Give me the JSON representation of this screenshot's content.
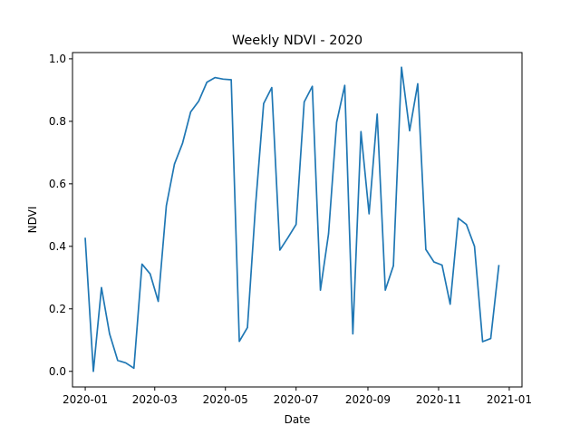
{
  "chart_data": {
    "type": "line",
    "title": "Weekly NDVI - 2020",
    "xlabel": "Date",
    "ylabel": "NDVI",
    "xlim": [
      "2019-12-21",
      "2021-01-12"
    ],
    "ylim": [
      -0.05,
      1.02
    ],
    "x_ticks": [
      "2020-01",
      "2020-03",
      "2020-05",
      "2020-07",
      "2020-09",
      "2020-11",
      "2021-01"
    ],
    "y_ticks": [
      "0.0",
      "0.2",
      "0.4",
      "0.6",
      "0.8",
      "1.0"
    ],
    "grid": false,
    "series": [
      {
        "color": "#1f77b4",
        "x": [
          "2020-01-01",
          "2020-01-08",
          "2020-01-15",
          "2020-01-22",
          "2020-01-29",
          "2020-02-05",
          "2020-02-12",
          "2020-02-19",
          "2020-02-26",
          "2020-03-04",
          "2020-03-11",
          "2020-03-18",
          "2020-03-25",
          "2020-04-01",
          "2020-04-08",
          "2020-04-15",
          "2020-04-22",
          "2020-04-29",
          "2020-05-06",
          "2020-05-13",
          "2020-05-20",
          "2020-05-27",
          "2020-06-03",
          "2020-06-10",
          "2020-06-17",
          "2020-06-24",
          "2020-07-01",
          "2020-07-08",
          "2020-07-15",
          "2020-07-22",
          "2020-07-29",
          "2020-08-05",
          "2020-08-12",
          "2020-08-19",
          "2020-08-26",
          "2020-09-02",
          "2020-09-09",
          "2020-09-16",
          "2020-09-23",
          "2020-09-30",
          "2020-10-07",
          "2020-10-14",
          "2020-10-21",
          "2020-10-28",
          "2020-11-04",
          "2020-11-11",
          "2020-11-18",
          "2020-11-25",
          "2020-12-02",
          "2020-12-09",
          "2020-12-16",
          "2020-12-23"
        ],
        "values": [
          0.425,
          0.0,
          0.268,
          0.12,
          0.035,
          0.027,
          0.01,
          0.343,
          0.312,
          0.224,
          0.53,
          0.663,
          0.73,
          0.83,
          0.865,
          0.925,
          0.94,
          0.935,
          0.933,
          0.096,
          0.14,
          0.53,
          0.857,
          0.908,
          0.388,
          0.428,
          0.47,
          0.862,
          0.912,
          0.26,
          0.44,
          0.797,
          0.915,
          0.12,
          0.767,
          0.504,
          0.823,
          0.26,
          0.338,
          0.973,
          0.77,
          0.92,
          0.39,
          0.35,
          0.34,
          0.215,
          0.49,
          0.47,
          0.4,
          0.095,
          0.105,
          0.338
        ]
      }
    ]
  }
}
